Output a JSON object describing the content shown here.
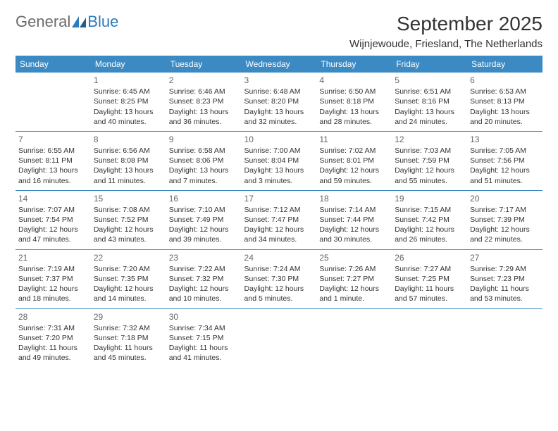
{
  "logo": {
    "text1": "General",
    "text2": "Blue"
  },
  "title": "September 2025",
  "location": "Wijnjewoude, Friesland, The Netherlands",
  "colors": {
    "header_bg": "#3b8ac4",
    "header_fg": "#ffffff",
    "line": "#3b8ac4",
    "logo_gray": "#6b6b6b",
    "logo_blue": "#2b7bbd"
  },
  "weekdays": [
    "Sunday",
    "Monday",
    "Tuesday",
    "Wednesday",
    "Thursday",
    "Friday",
    "Saturday"
  ],
  "weeks": [
    [
      null,
      {
        "d": "1",
        "sr": "Sunrise: 6:45 AM",
        "ss": "Sunset: 8:25 PM",
        "dl1": "Daylight: 13 hours",
        "dl2": "and 40 minutes."
      },
      {
        "d": "2",
        "sr": "Sunrise: 6:46 AM",
        "ss": "Sunset: 8:23 PM",
        "dl1": "Daylight: 13 hours",
        "dl2": "and 36 minutes."
      },
      {
        "d": "3",
        "sr": "Sunrise: 6:48 AM",
        "ss": "Sunset: 8:20 PM",
        "dl1": "Daylight: 13 hours",
        "dl2": "and 32 minutes."
      },
      {
        "d": "4",
        "sr": "Sunrise: 6:50 AM",
        "ss": "Sunset: 8:18 PM",
        "dl1": "Daylight: 13 hours",
        "dl2": "and 28 minutes."
      },
      {
        "d": "5",
        "sr": "Sunrise: 6:51 AM",
        "ss": "Sunset: 8:16 PM",
        "dl1": "Daylight: 13 hours",
        "dl2": "and 24 minutes."
      },
      {
        "d": "6",
        "sr": "Sunrise: 6:53 AM",
        "ss": "Sunset: 8:13 PM",
        "dl1": "Daylight: 13 hours",
        "dl2": "and 20 minutes."
      }
    ],
    [
      {
        "d": "7",
        "sr": "Sunrise: 6:55 AM",
        "ss": "Sunset: 8:11 PM",
        "dl1": "Daylight: 13 hours",
        "dl2": "and 16 minutes."
      },
      {
        "d": "8",
        "sr": "Sunrise: 6:56 AM",
        "ss": "Sunset: 8:08 PM",
        "dl1": "Daylight: 13 hours",
        "dl2": "and 11 minutes."
      },
      {
        "d": "9",
        "sr": "Sunrise: 6:58 AM",
        "ss": "Sunset: 8:06 PM",
        "dl1": "Daylight: 13 hours",
        "dl2": "and 7 minutes."
      },
      {
        "d": "10",
        "sr": "Sunrise: 7:00 AM",
        "ss": "Sunset: 8:04 PM",
        "dl1": "Daylight: 13 hours",
        "dl2": "and 3 minutes."
      },
      {
        "d": "11",
        "sr": "Sunrise: 7:02 AM",
        "ss": "Sunset: 8:01 PM",
        "dl1": "Daylight: 12 hours",
        "dl2": "and 59 minutes."
      },
      {
        "d": "12",
        "sr": "Sunrise: 7:03 AM",
        "ss": "Sunset: 7:59 PM",
        "dl1": "Daylight: 12 hours",
        "dl2": "and 55 minutes."
      },
      {
        "d": "13",
        "sr": "Sunrise: 7:05 AM",
        "ss": "Sunset: 7:56 PM",
        "dl1": "Daylight: 12 hours",
        "dl2": "and 51 minutes."
      }
    ],
    [
      {
        "d": "14",
        "sr": "Sunrise: 7:07 AM",
        "ss": "Sunset: 7:54 PM",
        "dl1": "Daylight: 12 hours",
        "dl2": "and 47 minutes."
      },
      {
        "d": "15",
        "sr": "Sunrise: 7:08 AM",
        "ss": "Sunset: 7:52 PM",
        "dl1": "Daylight: 12 hours",
        "dl2": "and 43 minutes."
      },
      {
        "d": "16",
        "sr": "Sunrise: 7:10 AM",
        "ss": "Sunset: 7:49 PM",
        "dl1": "Daylight: 12 hours",
        "dl2": "and 39 minutes."
      },
      {
        "d": "17",
        "sr": "Sunrise: 7:12 AM",
        "ss": "Sunset: 7:47 PM",
        "dl1": "Daylight: 12 hours",
        "dl2": "and 34 minutes."
      },
      {
        "d": "18",
        "sr": "Sunrise: 7:14 AM",
        "ss": "Sunset: 7:44 PM",
        "dl1": "Daylight: 12 hours",
        "dl2": "and 30 minutes."
      },
      {
        "d": "19",
        "sr": "Sunrise: 7:15 AM",
        "ss": "Sunset: 7:42 PM",
        "dl1": "Daylight: 12 hours",
        "dl2": "and 26 minutes."
      },
      {
        "d": "20",
        "sr": "Sunrise: 7:17 AM",
        "ss": "Sunset: 7:39 PM",
        "dl1": "Daylight: 12 hours",
        "dl2": "and 22 minutes."
      }
    ],
    [
      {
        "d": "21",
        "sr": "Sunrise: 7:19 AM",
        "ss": "Sunset: 7:37 PM",
        "dl1": "Daylight: 12 hours",
        "dl2": "and 18 minutes."
      },
      {
        "d": "22",
        "sr": "Sunrise: 7:20 AM",
        "ss": "Sunset: 7:35 PM",
        "dl1": "Daylight: 12 hours",
        "dl2": "and 14 minutes."
      },
      {
        "d": "23",
        "sr": "Sunrise: 7:22 AM",
        "ss": "Sunset: 7:32 PM",
        "dl1": "Daylight: 12 hours",
        "dl2": "and 10 minutes."
      },
      {
        "d": "24",
        "sr": "Sunrise: 7:24 AM",
        "ss": "Sunset: 7:30 PM",
        "dl1": "Daylight: 12 hours",
        "dl2": "and 5 minutes."
      },
      {
        "d": "25",
        "sr": "Sunrise: 7:26 AM",
        "ss": "Sunset: 7:27 PM",
        "dl1": "Daylight: 12 hours",
        "dl2": "and 1 minute."
      },
      {
        "d": "26",
        "sr": "Sunrise: 7:27 AM",
        "ss": "Sunset: 7:25 PM",
        "dl1": "Daylight: 11 hours",
        "dl2": "and 57 minutes."
      },
      {
        "d": "27",
        "sr": "Sunrise: 7:29 AM",
        "ss": "Sunset: 7:23 PM",
        "dl1": "Daylight: 11 hours",
        "dl2": "and 53 minutes."
      }
    ],
    [
      {
        "d": "28",
        "sr": "Sunrise: 7:31 AM",
        "ss": "Sunset: 7:20 PM",
        "dl1": "Daylight: 11 hours",
        "dl2": "and 49 minutes."
      },
      {
        "d": "29",
        "sr": "Sunrise: 7:32 AM",
        "ss": "Sunset: 7:18 PM",
        "dl1": "Daylight: 11 hours",
        "dl2": "and 45 minutes."
      },
      {
        "d": "30",
        "sr": "Sunrise: 7:34 AM",
        "ss": "Sunset: 7:15 PM",
        "dl1": "Daylight: 11 hours",
        "dl2": "and 41 minutes."
      },
      null,
      null,
      null,
      null
    ]
  ]
}
